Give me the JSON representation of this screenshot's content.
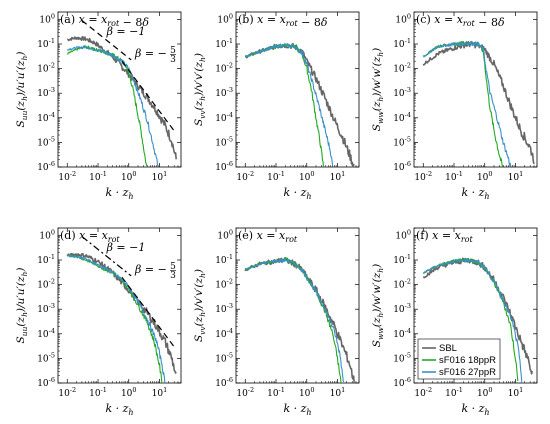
{
  "chart_data": [
    {
      "panel": "(a)",
      "title": "(a) x = x_rot − 8δ",
      "ylabel": "S_uu(z_h)/u'u'(z_h)",
      "xlabel": "k · z_h",
      "type": "line",
      "xscale": "log",
      "yscale": "log",
      "xlim": [
        0.005,
        50
      ],
      "ylim": [
        1e-06,
        2
      ],
      "xticks": [
        "10-2",
        "10-1",
        "100",
        "101"
      ],
      "yticks": [
        "10-6",
        "10-5",
        "10-4",
        "10-3",
        "10-2",
        "10-1",
        "100"
      ],
      "annotations": [
        "β=−1",
        "β=−5/3"
      ],
      "series": [
        {
          "color": "#666666",
          "points": [
            [
              0.01,
              0.15
            ],
            [
              0.02,
              0.18
            ],
            [
              0.04,
              0.16
            ],
            [
              0.08,
              0.11
            ],
            [
              0.15,
              0.06
            ],
            [
              0.3,
              0.03
            ],
            [
              0.6,
              0.012
            ],
            [
              1.0,
              0.006
            ],
            [
              2,
              0.002
            ],
            [
              4,
              0.0007
            ],
            [
              8,
              0.0002
            ],
            [
              15,
              5e-05
            ],
            [
              25,
              1.2e-05
            ],
            [
              35,
              2e-06
            ]
          ]
        },
        {
          "color": "#22aa22",
          "points": [
            [
              0.01,
              0.04
            ],
            [
              0.02,
              0.06
            ],
            [
              0.04,
              0.08
            ],
            [
              0.08,
              0.06
            ],
            [
              0.15,
              0.05
            ],
            [
              0.3,
              0.035
            ],
            [
              0.6,
              0.02
            ],
            [
              0.9,
              0.01
            ],
            [
              1.3,
              0.002
            ],
            [
              1.8,
              0.00025
            ],
            [
              2.5,
              3e-05
            ],
            [
              3.2,
              4e-06
            ],
            [
              3.8,
              1e-06
            ]
          ]
        },
        {
          "color": "#3a8fc8",
          "points": [
            [
              0.01,
              0.06
            ],
            [
              0.02,
              0.07
            ],
            [
              0.04,
              0.075
            ],
            [
              0.08,
              0.06
            ],
            [
              0.15,
              0.05
            ],
            [
              0.3,
              0.035
            ],
            [
              0.6,
              0.02
            ],
            [
              1.0,
              0.01
            ],
            [
              1.5,
              0.003
            ],
            [
              2.5,
              0.0005
            ],
            [
              4,
              8e-05
            ],
            [
              6,
              1e-05
            ],
            [
              8,
              2e-06
            ],
            [
              9,
              1e-06
            ]
          ]
        }
      ]
    },
    {
      "panel": "(b)",
      "title": "(b) x = x_rot − 8δ",
      "ylabel": "S_vv(z_h)/v'v'(z_h)",
      "xlabel": "k · z_h",
      "type": "line",
      "xscale": "log",
      "yscale": "log",
      "xlim": [
        0.005,
        50
      ],
      "ylim": [
        1e-06,
        2
      ],
      "series": [
        {
          "color": "#666666",
          "points": [
            [
              0.01,
              0.03
            ],
            [
              0.03,
              0.05
            ],
            [
              0.1,
              0.08
            ],
            [
              0.2,
              0.09
            ],
            [
              0.4,
              0.08
            ],
            [
              0.7,
              0.05
            ],
            [
              1.0,
              0.02
            ],
            [
              2,
              0.004
            ],
            [
              4,
              0.0006
            ],
            [
              8,
              8e-05
            ],
            [
              15,
              1.5e-05
            ],
            [
              25,
              3e-06
            ],
            [
              35,
              1e-06
            ]
          ]
        },
        {
          "color": "#22aa22",
          "points": [
            [
              0.01,
              0.03
            ],
            [
              0.03,
              0.05
            ],
            [
              0.1,
              0.08
            ],
            [
              0.2,
              0.09
            ],
            [
              0.4,
              0.08
            ],
            [
              0.7,
              0.04
            ],
            [
              1.0,
              0.01
            ],
            [
              1.4,
              0.0015
            ],
            [
              2.0,
              0.0001
            ],
            [
              2.8,
              8e-06
            ],
            [
              3.5,
              1e-06
            ]
          ]
        },
        {
          "color": "#3a8fc8",
          "points": [
            [
              0.01,
              0.03
            ],
            [
              0.03,
              0.05
            ],
            [
              0.1,
              0.08
            ],
            [
              0.2,
              0.09
            ],
            [
              0.4,
              0.08
            ],
            [
              0.7,
              0.045
            ],
            [
              1.0,
              0.015
            ],
            [
              1.5,
              0.003
            ],
            [
              2.5,
              0.0003
            ],
            [
              4,
              3e-05
            ],
            [
              6,
              4e-06
            ],
            [
              7,
              1e-06
            ]
          ]
        }
      ]
    },
    {
      "panel": "(c)",
      "title": "(c) x = x_rot − 8δ",
      "ylabel": "S_ww(z_h)/w'w'(z_h)",
      "xlabel": "k · z_h",
      "type": "line",
      "xscale": "log",
      "yscale": "log",
      "xlim": [
        0.005,
        50
      ],
      "ylim": [
        1e-06,
        2
      ],
      "series": [
        {
          "color": "#666666",
          "points": [
            [
              0.01,
              0.015
            ],
            [
              0.03,
              0.04
            ],
            [
              0.1,
              0.07
            ],
            [
              0.3,
              0.1
            ],
            [
              0.6,
              0.09
            ],
            [
              1.0,
              0.06
            ],
            [
              2,
              0.015
            ],
            [
              4,
              0.002
            ],
            [
              8,
              0.0002
            ],
            [
              15,
              3e-05
            ],
            [
              30,
              6e-06
            ],
            [
              40,
              2e-06
            ]
          ]
        },
        {
          "color": "#22aa22",
          "points": [
            [
              0.01,
              0.03
            ],
            [
              0.03,
              0.08
            ],
            [
              0.1,
              0.1
            ],
            [
              0.3,
              0.11
            ],
            [
              0.6,
              0.1
            ],
            [
              0.9,
              0.05
            ],
            [
              1.1,
              0.005
            ],
            [
              1.4,
              0.0004
            ],
            [
              2,
              3e-05
            ],
            [
              3,
              3e-06
            ],
            [
              3.8,
              1e-06
            ]
          ]
        },
        {
          "color": "#3a8fc8",
          "points": [
            [
              0.01,
              0.03
            ],
            [
              0.03,
              0.08
            ],
            [
              0.1,
              0.1
            ],
            [
              0.3,
              0.11
            ],
            [
              0.6,
              0.1
            ],
            [
              0.9,
              0.06
            ],
            [
              1.1,
              0.01
            ],
            [
              1.5,
              0.001
            ],
            [
              2.5,
              0.0001
            ],
            [
              4,
              1e-05
            ],
            [
              6,
              2e-06
            ],
            [
              7,
              1e-06
            ]
          ]
        }
      ]
    },
    {
      "panel": "(d)",
      "title": "(d) x = x_rot",
      "ylabel": "S_uu(z_h)/u'u'(z_h)",
      "xlabel": "k · z_h",
      "type": "line",
      "xscale": "log",
      "yscale": "log",
      "xlim": [
        0.005,
        50
      ],
      "ylim": [
        1e-06,
        2
      ],
      "annotations": [
        "β=−1",
        "β=−5/3"
      ],
      "series": [
        {
          "color": "#666666",
          "points": [
            [
              0.01,
              0.15
            ],
            [
              0.02,
              0.17
            ],
            [
              0.04,
              0.15
            ],
            [
              0.08,
              0.1
            ],
            [
              0.15,
              0.06
            ],
            [
              0.3,
              0.03
            ],
            [
              0.6,
              0.012
            ],
            [
              1.0,
              0.006
            ],
            [
              2,
              0.002
            ],
            [
              4,
              0.0007
            ],
            [
              8,
              0.0002
            ],
            [
              15,
              5e-05
            ],
            [
              25,
              1e-05
            ],
            [
              35,
              2e-06
            ]
          ]
        },
        {
          "color": "#22aa22",
          "points": [
            [
              0.01,
              0.15
            ],
            [
              0.02,
              0.14
            ],
            [
              0.04,
              0.1
            ],
            [
              0.08,
              0.07
            ],
            [
              0.15,
              0.045
            ],
            [
              0.3,
              0.03
            ],
            [
              0.6,
              0.015
            ],
            [
              1.0,
              0.007
            ],
            [
              2,
              0.0015
            ],
            [
              4,
              0.0003
            ],
            [
              7,
              4e-05
            ],
            [
              10,
              5e-06
            ],
            [
              12,
              1e-06
            ]
          ]
        },
        {
          "color": "#3a8fc8",
          "points": [
            [
              0.01,
              0.15
            ],
            [
              0.02,
              0.14
            ],
            [
              0.04,
              0.11
            ],
            [
              0.08,
              0.07
            ],
            [
              0.15,
              0.05
            ],
            [
              0.3,
              0.03
            ],
            [
              0.6,
              0.016
            ],
            [
              1.0,
              0.008
            ],
            [
              2,
              0.002
            ],
            [
              4,
              0.0004
            ],
            [
              8,
              5e-05
            ],
            [
              12,
              6e-06
            ],
            [
              15,
              1e-06
            ]
          ]
        }
      ]
    },
    {
      "panel": "(e)",
      "title": "(e) x = x_rot",
      "ylabel": "S_vv(z_h)/v'v'(z_h)",
      "xlabel": "k · z_h",
      "type": "line",
      "xscale": "log",
      "yscale": "log",
      "xlim": [
        0.005,
        50
      ],
      "ylim": [
        1e-06,
        2
      ],
      "series": [
        {
          "color": "#666666",
          "points": [
            [
              0.01,
              0.04
            ],
            [
              0.03,
              0.07
            ],
            [
              0.1,
              0.09
            ],
            [
              0.2,
              0.1
            ],
            [
              0.4,
              0.07
            ],
            [
              0.7,
              0.04
            ],
            [
              1.0,
              0.02
            ],
            [
              2,
              0.006
            ],
            [
              4,
              0.0012
            ],
            [
              8,
              0.0002
            ],
            [
              15,
              3e-05
            ],
            [
              25,
              6e-06
            ],
            [
              35,
              1e-06
            ]
          ]
        },
        {
          "color": "#22aa22",
          "points": [
            [
              0.01,
              0.04
            ],
            [
              0.03,
              0.07
            ],
            [
              0.1,
              0.09
            ],
            [
              0.2,
              0.11
            ],
            [
              0.4,
              0.07
            ],
            [
              0.7,
              0.04
            ],
            [
              1.0,
              0.02
            ],
            [
              2,
              0.005
            ],
            [
              4,
              0.0008
            ],
            [
              7,
              0.0001
            ],
            [
              10,
              1e-05
            ],
            [
              13,
              1e-06
            ]
          ]
        },
        {
          "color": "#3a8fc8",
          "points": [
            [
              0.01,
              0.04
            ],
            [
              0.03,
              0.07
            ],
            [
              0.1,
              0.09
            ],
            [
              0.2,
              0.1
            ],
            [
              0.4,
              0.07
            ],
            [
              0.7,
              0.04
            ],
            [
              1.0,
              0.02
            ],
            [
              2,
              0.005
            ],
            [
              4,
              0.001
            ],
            [
              8,
              0.00012
            ],
            [
              12,
              1.5e-05
            ],
            [
              16,
              1e-06
            ]
          ]
        }
      ]
    },
    {
      "panel": "(f)",
      "title": "(f) x = x_rot",
      "ylabel": "S_ww(z_h)/w'w'(z_h)",
      "xlabel": "k · z_h",
      "type": "line",
      "xscale": "log",
      "yscale": "log",
      "xlim": [
        0.005,
        50
      ],
      "ylim": [
        1e-06,
        2
      ],
      "legend": {
        "position": "lower-left",
        "entries": [
          "SBL",
          "sF016 18ppR",
          "sF016 27ppR"
        ]
      },
      "series": [
        {
          "name": "SBL",
          "color": "#666666",
          "points": [
            [
              0.01,
              0.02
            ],
            [
              0.03,
              0.05
            ],
            [
              0.1,
              0.08
            ],
            [
              0.3,
              0.1
            ],
            [
              0.6,
              0.08
            ],
            [
              1.0,
              0.05
            ],
            [
              2,
              0.015
            ],
            [
              4,
              0.003
            ],
            [
              8,
              0.0004
            ],
            [
              15,
              5e-05
            ],
            [
              25,
              1e-05
            ],
            [
              35,
              2e-06
            ]
          ]
        },
        {
          "name": "sF016 18ppR",
          "color": "#22aa22",
          "points": [
            [
              0.01,
              0.03
            ],
            [
              0.03,
              0.06
            ],
            [
              0.1,
              0.09
            ],
            [
              0.3,
              0.1
            ],
            [
              0.6,
              0.08
            ],
            [
              1.0,
              0.05
            ],
            [
              2,
              0.012
            ],
            [
              4,
              0.002
            ],
            [
              7,
              0.0002
            ],
            [
              10,
              1e-05
            ],
            [
              12,
              1e-06
            ]
          ]
        },
        {
          "name": "sF016 27ppR",
          "color": "#3a8fc8",
          "points": [
            [
              0.01,
              0.03
            ],
            [
              0.03,
              0.06
            ],
            [
              0.1,
              0.09
            ],
            [
              0.3,
              0.1
            ],
            [
              0.6,
              0.08
            ],
            [
              1.0,
              0.05
            ],
            [
              2,
              0.013
            ],
            [
              4,
              0.0025
            ],
            [
              8,
              0.0003
            ],
            [
              12,
              3e-05
            ],
            [
              15,
              3e-06
            ],
            [
              16,
              1e-06
            ]
          ]
        }
      ]
    }
  ]
}
